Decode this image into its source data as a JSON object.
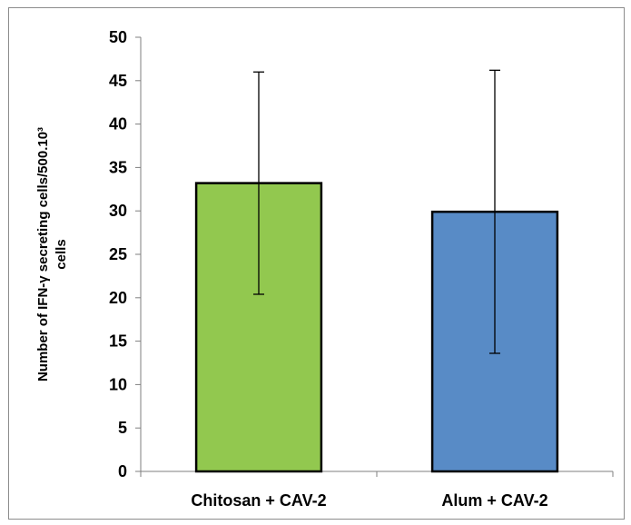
{
  "chart_data": {
    "type": "bar",
    "categories": [
      "Chitosan + CAV-2",
      "Alum + CAV-2"
    ],
    "values": [
      33.2,
      29.9
    ],
    "error_low": [
      20.4,
      13.6
    ],
    "error_high": [
      46.0,
      46.2
    ],
    "bar_colors": [
      "#92c84f",
      "#588bc6"
    ],
    "bar_edge_color": "#000000",
    "title": "",
    "xlabel": "",
    "ylabel_lines": [
      "Number of IFN-γ secreting cells/500.10³",
      "cells"
    ],
    "ylim": [
      0,
      50
    ],
    "yticks": [
      0,
      5,
      10,
      15,
      20,
      25,
      30,
      35,
      40,
      45,
      50
    ],
    "grid": false,
    "legend": false
  }
}
